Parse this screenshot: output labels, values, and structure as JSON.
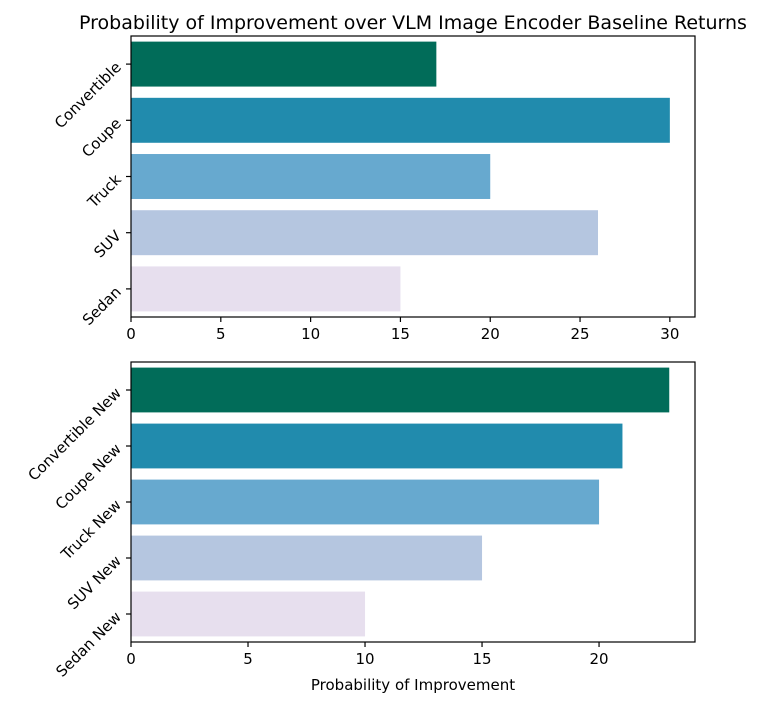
{
  "chart_data": [
    {
      "type": "bar",
      "orientation": "horizontal",
      "title": "Probability of Improvement over VLM Image Encoder Baseline Returns",
      "categories": [
        "Convertible",
        "Coupe",
        "Truck",
        "SUV",
        "Sedan"
      ],
      "values": [
        17,
        30,
        20,
        26,
        15
      ],
      "colors": [
        "#016c59",
        "#218bad",
        "#67a9cf",
        "#b5c6e0",
        "#e7dfee"
      ],
      "xlabel": "",
      "xlim": [
        0,
        31.4
      ],
      "xticks": [
        0,
        5,
        10,
        15,
        20,
        25,
        30
      ],
      "grid": false
    },
    {
      "type": "bar",
      "orientation": "horizontal",
      "categories": [
        "Convertible New",
        "Coupe New",
        "Truck New",
        "SUV New",
        "Sedan New"
      ],
      "values": [
        23,
        21,
        20,
        15,
        10
      ],
      "colors": [
        "#016c59",
        "#218bad",
        "#67a9cf",
        "#b5c6e0",
        "#e7dfee"
      ],
      "xlabel": "Probability of Improvement",
      "xlim": [
        0,
        24.1
      ],
      "xticks": [
        0,
        5,
        10,
        15,
        20
      ],
      "grid": false
    }
  ]
}
